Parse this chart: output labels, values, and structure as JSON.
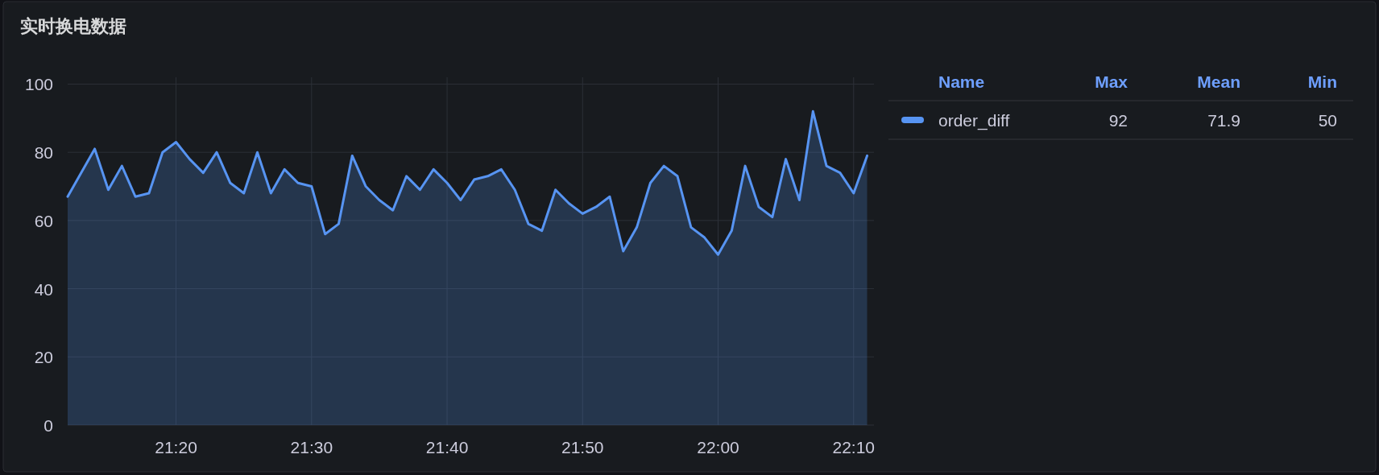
{
  "chart_data": {
    "type": "area",
    "title": "实时换电数据",
    "x": [
      21.2,
      21.2167,
      21.2333,
      21.25,
      21.2667,
      21.2833,
      21.3,
      21.3167,
      21.3333,
      21.35,
      21.3667,
      21.3833,
      21.4,
      21.4167,
      21.4333,
      21.45,
      21.4667,
      21.4833,
      21.5,
      21.5167,
      21.5333,
      21.55,
      21.5667,
      21.5833,
      21.6,
      21.6167,
      21.6333,
      21.65,
      21.6667,
      21.6833,
      21.7,
      21.7167,
      21.7333,
      21.75,
      21.7667,
      21.7833,
      21.8,
      21.8167,
      21.8333,
      21.85,
      21.8667,
      21.8833,
      21.9,
      21.9167,
      21.9333,
      21.95,
      21.9667,
      21.9833,
      22.0,
      22.0167,
      22.0333,
      22.05,
      22.0667,
      22.0833,
      22.1,
      22.1167,
      22.1333,
      22.15,
      22.1667,
      22.1833
    ],
    "series": [
      {
        "name": "order_diff",
        "color": "#5794f2",
        "values": [
          67,
          74,
          81,
          69,
          76,
          67,
          68,
          80,
          83,
          78,
          74,
          80,
          71,
          68,
          80,
          68,
          75,
          71,
          70,
          56,
          59,
          79,
          70,
          66,
          63,
          73,
          69,
          75,
          71,
          66,
          72,
          73,
          75,
          69,
          59,
          57,
          69,
          65,
          62,
          64,
          67,
          51,
          58,
          71,
          76,
          73,
          58,
          55,
          50,
          57,
          76,
          64,
          61,
          78,
          66,
          92,
          76,
          74,
          68,
          79
        ]
      }
    ],
    "xlim": [
      21.2,
      22.1917
    ],
    "xticks": [
      {
        "value": 21.3333,
        "label": "21:20"
      },
      {
        "value": 21.5,
        "label": "21:30"
      },
      {
        "value": 21.6667,
        "label": "21:40"
      },
      {
        "value": 21.8333,
        "label": "21:50"
      },
      {
        "value": 22.0,
        "label": "22:00"
      },
      {
        "value": 22.1667,
        "label": "22:10"
      }
    ],
    "ylim": [
      0,
      102
    ],
    "yticks": [
      0,
      20,
      40,
      60,
      80,
      100
    ],
    "grid": true,
    "legend": "right",
    "annotations": [
      "Name",
      "Max",
      "Mean",
      "Min",
      "92",
      "71.9",
      "50"
    ]
  }
}
